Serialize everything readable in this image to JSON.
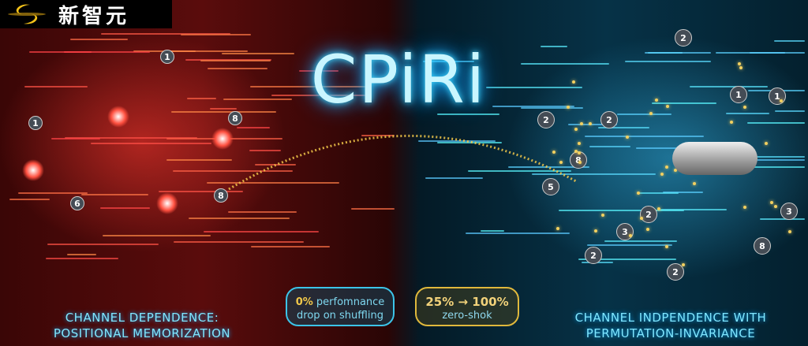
{
  "logo": {
    "text": "新智元"
  },
  "title": "CPiRi",
  "left_caption": {
    "line1": "CHANNEL DEPENDENCE:",
    "line2": "POSITIONAL MEMORIZATION"
  },
  "right_caption": {
    "line1": "CHANNEL INDPENDENCE WITH",
    "line2": "PERMUTATION-INVARIANCE"
  },
  "badge_left": {
    "highlight": "0%",
    "line1_rest": " perfomnance",
    "line2": "drop on shuffling"
  },
  "badge_right": {
    "line1": "25% → 100%",
    "line2": "zero-shok"
  },
  "left_nodes": [
    "1",
    "1",
    "6",
    "8",
    "8"
  ],
  "right_nodes": [
    "2",
    "1",
    "2",
    "2",
    "8",
    "5",
    "3",
    "2",
    "2",
    "8",
    "3",
    "1",
    "2"
  ],
  "colors": {
    "left": "#e8302a",
    "right": "#2ec8f0",
    "gold": "#e8c54a"
  }
}
